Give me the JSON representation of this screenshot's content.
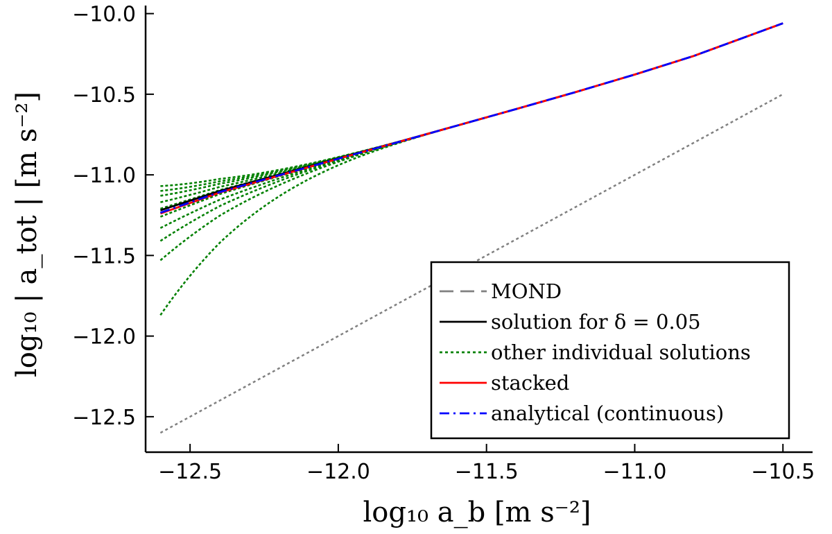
{
  "chart_data": {
    "type": "line",
    "xlabel": "log₁₀ a_b [m s⁻²]",
    "ylabel": "log₁₀ | a_tot | [m s⁻²]",
    "xlim": [
      -12.65,
      -10.4
    ],
    "ylim": [
      -12.72,
      -9.95
    ],
    "x_ticks": [
      -12.5,
      -12.0,
      -11.5,
      -11.0,
      -10.5
    ],
    "x_tick_labels": [
      "−12.5",
      "−12.0",
      "−11.5",
      "−11.0",
      "−10.5"
    ],
    "y_ticks": [
      -12.5,
      -12.0,
      -11.5,
      -11.0,
      -10.5,
      -10.0
    ],
    "y_tick_labels": [
      "−12.5",
      "−12.0",
      "−11.5",
      "−11.0",
      "−10.5",
      "−10.0"
    ],
    "grid": false,
    "legend_position": "bottom-right",
    "series": [
      {
        "name": "MOND",
        "style": "dashed",
        "color": "#808080",
        "x": [
          -12.6,
          -10.5
        ],
        "y": [
          -12.6,
          -10.5
        ]
      },
      {
        "name": "solution for δ = 0.05",
        "style": "solid",
        "color": "#000000",
        "x": [
          -12.6,
          -12.4,
          -12.2,
          -12.0,
          -11.8,
          -11.6,
          -11.4,
          -11.2,
          -11.0,
          -10.8,
          -10.5
        ],
        "y": [
          -11.22,
          -11.1,
          -10.999,
          -10.898,
          -10.797,
          -10.695,
          -10.592,
          -10.487,
          -10.378,
          -10.262,
          -10.06
        ]
      },
      {
        "name": "other individual solutions",
        "style": "dotted",
        "color": "#008000",
        "x_start": -12.6,
        "x_end": -11.5,
        "start_y_values": [
          -11.07,
          -11.1,
          -11.13,
          -11.17,
          -11.21,
          -11.26,
          -11.33,
          -11.41,
          -11.53,
          -11.87
        ]
      },
      {
        "name": "stacked",
        "style": "solid",
        "color": "#ff0000",
        "x": [
          -12.6,
          -12.4,
          -12.2,
          -12.0,
          -11.8,
          -11.6,
          -11.4,
          -11.2,
          -11.0,
          -10.8,
          -10.5
        ],
        "y": [
          -11.24,
          -11.11,
          -11.005,
          -10.9,
          -10.798,
          -10.695,
          -10.592,
          -10.487,
          -10.378,
          -10.262,
          -10.06
        ]
      },
      {
        "name": "analytical (continuous)",
        "style": "dashdot",
        "color": "#0000ff",
        "x": [
          -12.6,
          -12.4,
          -12.2,
          -12.0,
          -11.8,
          -11.6,
          -11.4,
          -11.2,
          -11.0,
          -10.8,
          -10.5
        ],
        "y": [
          -11.235,
          -11.107,
          -11.003,
          -10.9,
          -10.798,
          -10.695,
          -10.592,
          -10.487,
          -10.378,
          -10.262,
          -10.06
        ]
      }
    ]
  }
}
